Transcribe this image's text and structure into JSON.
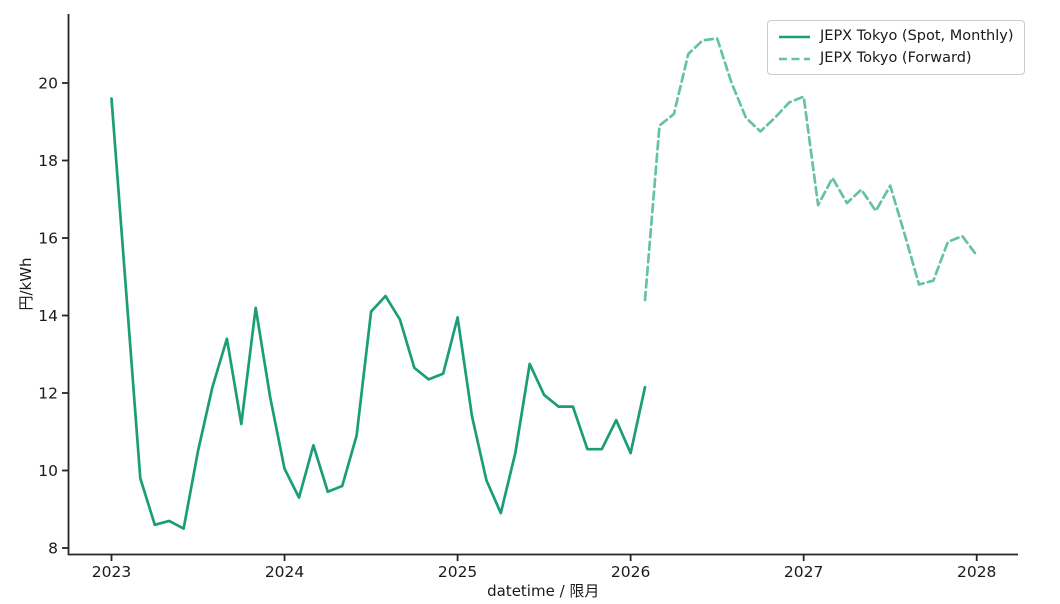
{
  "figure": {
    "background": "#ffffff",
    "text_color": "#1a1a1a",
    "spine_color": "#262626"
  },
  "legend": {
    "items": [
      {
        "label": "JEPX Tokyo (Spot, Monthly)",
        "style": "solid",
        "color": "#1b9e77"
      },
      {
        "label": "JEPX Tokyo (Forward)",
        "style": "dashed",
        "color": "#66c2a5"
      }
    ]
  },
  "chart_data": {
    "type": "line",
    "title": "",
    "xlabel": "datetime / 限月",
    "ylabel": "円/kWh",
    "grid": false,
    "legend_position": "upper right",
    "x_tick_labels": [
      "2023",
      "2024",
      "2025",
      "2026",
      "2027",
      "2028"
    ],
    "y_ticks": [
      8,
      10,
      12,
      14,
      16,
      18,
      20
    ],
    "ylim": [
      7.8,
      21.8
    ],
    "series": [
      {
        "name": "JEPX Tokyo (Spot, Monthly)",
        "color": "#1b9e77",
        "style": "solid",
        "x": [
          "2023-01",
          "2023-02",
          "2023-03",
          "2023-04",
          "2023-05",
          "2023-06",
          "2023-07",
          "2023-08",
          "2023-09",
          "2023-10",
          "2023-11",
          "2023-12",
          "2024-01",
          "2024-02",
          "2024-03",
          "2024-04",
          "2024-05",
          "2024-06",
          "2024-07",
          "2024-08",
          "2024-09",
          "2024-10",
          "2024-11",
          "2024-12",
          "2025-01",
          "2025-02",
          "2025-03",
          "2025-04",
          "2025-05",
          "2025-06",
          "2025-07",
          "2025-08",
          "2025-09",
          "2025-10",
          "2025-11",
          "2025-12",
          "2026-01",
          "2026-02"
        ],
        "values": [
          19.6,
          14.7,
          9.8,
          8.6,
          8.7,
          8.5,
          10.5,
          12.15,
          13.4,
          11.2,
          14.2,
          11.9,
          10.05,
          9.3,
          10.65,
          9.45,
          9.6,
          10.9,
          14.1,
          14.5,
          13.9,
          12.65,
          12.35,
          12.5,
          13.95,
          11.4,
          9.75,
          8.9,
          10.45,
          12.75,
          11.95,
          11.65,
          11.65,
          10.55,
          10.55,
          11.3,
          10.45,
          12.15
        ]
      },
      {
        "name": "JEPX Tokyo (Forward)",
        "color": "#66c2a5",
        "style": "dashed",
        "x": [
          "2026-02",
          "2026-03",
          "2026-04",
          "2026-05",
          "2026-06",
          "2026-07",
          "2026-08",
          "2026-09",
          "2026-10",
          "2026-11",
          "2026-12",
          "2027-01",
          "2027-02",
          "2027-03",
          "2027-04",
          "2027-05",
          "2027-06",
          "2027-07",
          "2027-08",
          "2027-09",
          "2027-10",
          "2027-11",
          "2027-12",
          "2028-01"
        ],
        "values": [
          14.4,
          18.9,
          19.2,
          20.75,
          21.1,
          21.15,
          20.0,
          19.1,
          18.75,
          19.1,
          19.5,
          19.65,
          16.85,
          17.55,
          16.9,
          17.25,
          16.7,
          17.35,
          16.1,
          14.8,
          14.9,
          15.9,
          16.05,
          15.55
        ]
      }
    ]
  }
}
